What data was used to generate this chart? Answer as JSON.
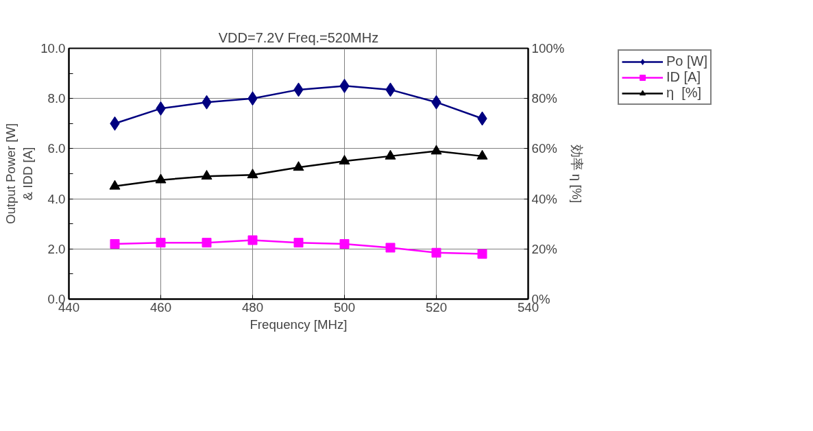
{
  "chart_data": {
    "type": "line",
    "title": "VDD=7.2V Freq.=520MHz",
    "xlabel": "Frequency [MHz]",
    "ylabel": "Output Power [W]\n& IDD [A]",
    "y2label": "効率 η [%]",
    "x": [
      450,
      460,
      470,
      480,
      490,
      500,
      510,
      520,
      530
    ],
    "xlim": [
      440,
      540
    ],
    "xticks": [
      440,
      460,
      480,
      500,
      520,
      540
    ],
    "ylim": [
      0,
      10
    ],
    "yticks": [
      {
        "value": 0,
        "label": "0.0"
      },
      {
        "value": 1,
        "label": null
      },
      {
        "value": 2,
        "label": "2.0"
      },
      {
        "value": 3,
        "label": null
      },
      {
        "value": 4,
        "label": "4.0"
      },
      {
        "value": 5,
        "label": null
      },
      {
        "value": 6,
        "label": "6.0"
      },
      {
        "value": 7,
        "label": null
      },
      {
        "value": 8,
        "label": "8.0"
      },
      {
        "value": 9,
        "label": null
      },
      {
        "value": 10,
        "label": "10.0"
      }
    ],
    "y2lim": [
      0,
      100
    ],
    "y2ticks": [
      {
        "value": 0,
        "label": "0%"
      },
      {
        "value": 20,
        "label": "20%"
      },
      {
        "value": 40,
        "label": "40%"
      },
      {
        "value": 60,
        "label": "60%"
      },
      {
        "value": 80,
        "label": "80%"
      },
      {
        "value": 100,
        "label": "100%"
      }
    ],
    "grid": true,
    "legend": "top right",
    "series": [
      {
        "name": "Po [W]",
        "color": "#000080",
        "marker": "diamond",
        "values": [
          7.0,
          7.6,
          7.85,
          8.0,
          8.35,
          8.5,
          8.35,
          7.85,
          7.2
        ]
      },
      {
        "name": "ID [A]",
        "color": "#ff00ff",
        "marker": "square",
        "values": [
          2.2,
          2.25,
          2.25,
          2.35,
          2.25,
          2.2,
          2.05,
          1.85,
          1.8
        ]
      },
      {
        "name": "η  [%]",
        "color": "#000000",
        "marker": "triangle",
        "axis": "y2",
        "values": [
          45,
          47.5,
          49,
          49.5,
          52.5,
          55,
          57,
          59,
          57
        ]
      }
    ]
  }
}
